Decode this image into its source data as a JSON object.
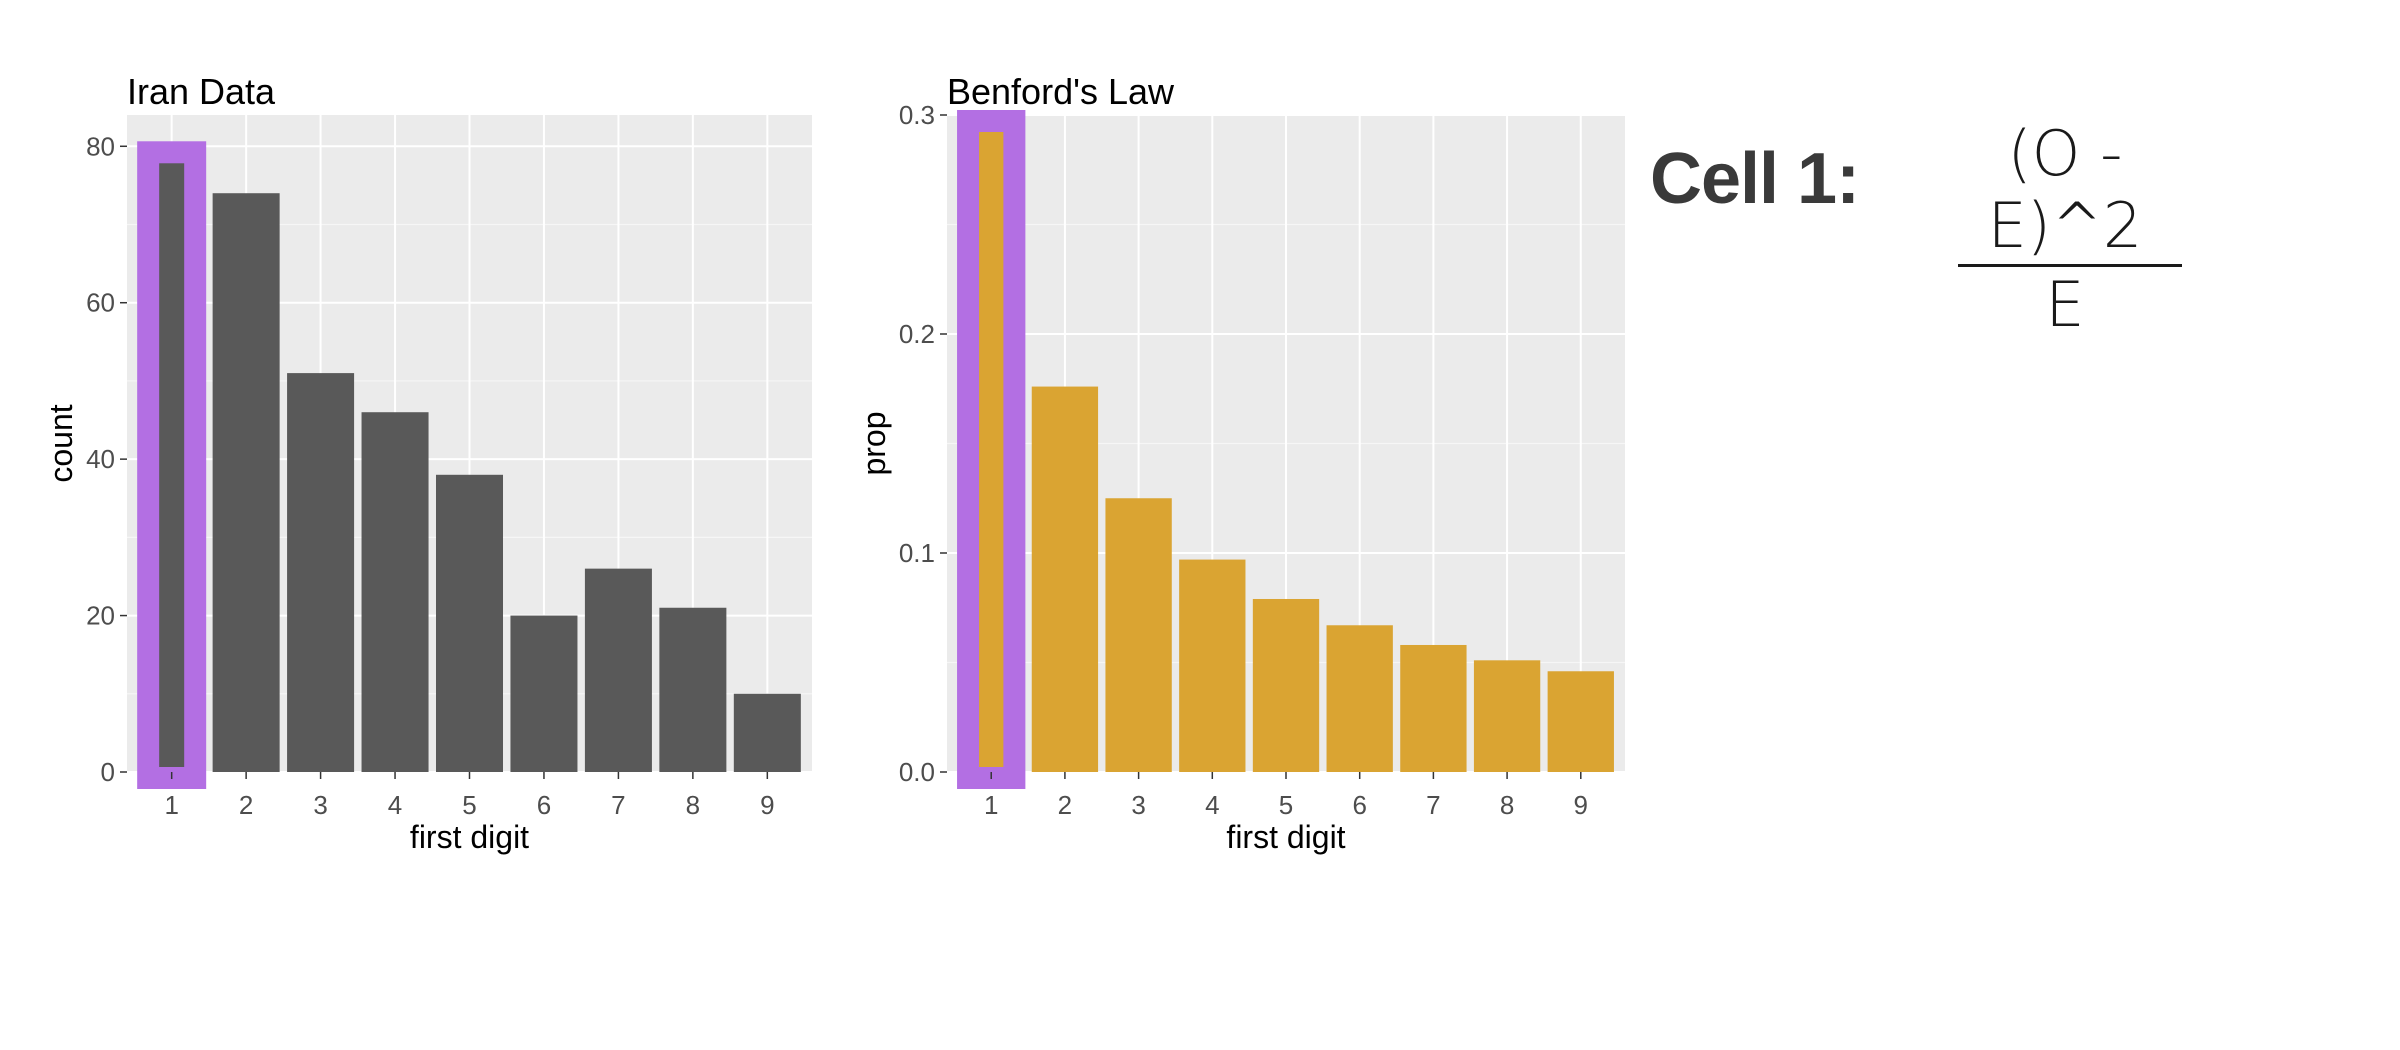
{
  "chart_data": [
    {
      "type": "bar",
      "title": "Iran Data",
      "xlabel": "first digit",
      "ylabel": "count",
      "categories": [
        "1",
        "2",
        "3",
        "4",
        "5",
        "6",
        "7",
        "8",
        "9"
      ],
      "values": [
        80,
        74,
        51,
        46,
        38,
        20,
        26,
        21,
        10
      ],
      "ylim": [
        0,
        84
      ],
      "yticks": [
        0,
        20,
        40,
        60,
        80
      ],
      "ytick_labels": [
        "0",
        "20",
        "40",
        "60",
        "80"
      ],
      "grid": true,
      "bar_color": "#595959",
      "panel_color": "#EBEBEB",
      "highlight": {
        "category": "1",
        "color": "#B36FE3"
      }
    },
    {
      "type": "bar",
      "title": "Benford's Law",
      "xlabel": "first digit",
      "ylabel": "prop",
      "categories": [
        "1",
        "2",
        "3",
        "4",
        "5",
        "6",
        "7",
        "8",
        "9"
      ],
      "values": [
        0.301,
        0.176,
        0.125,
        0.097,
        0.079,
        0.067,
        0.058,
        0.051,
        0.046
      ],
      "ylim": [
        0,
        0.3
      ],
      "yticks": [
        0,
        0.1,
        0.2,
        0.3
      ],
      "ytick_labels": [
        "0.0",
        "0.1",
        "0.2",
        "0.3"
      ],
      "grid": true,
      "bar_color": "#DAA432",
      "panel_color": "#EBEBEB",
      "highlight": {
        "category": "1",
        "color": "#B36FE3"
      }
    }
  ],
  "annotation": {
    "label": "Cell 1:",
    "numerator": "(O - E)^2",
    "denominator": "E"
  }
}
